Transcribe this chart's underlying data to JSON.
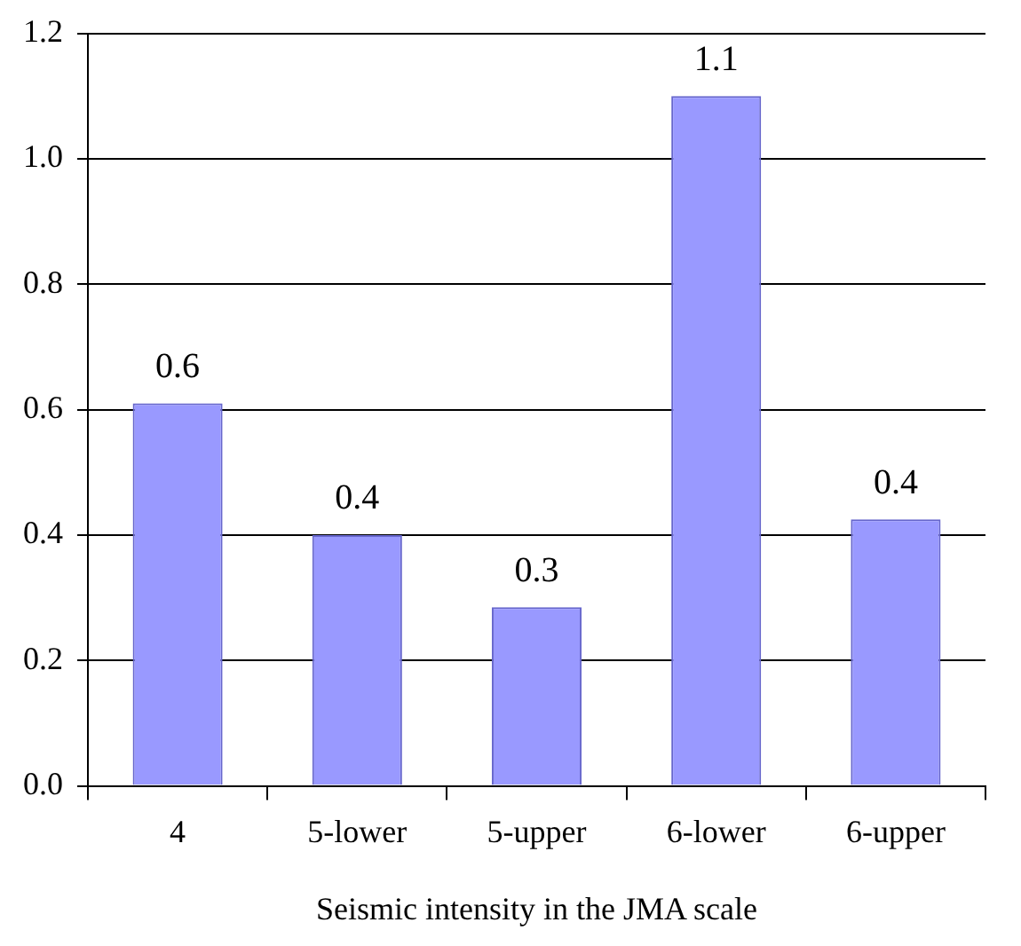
{
  "chart_data": {
    "type": "bar",
    "xlabel": "Seismic intensity in the JMA scale",
    "categories": [
      "4",
      "5-lower",
      "5-upper",
      "6-lower",
      "6-upper"
    ],
    "values": [
      0.61,
      0.4,
      0.285,
      1.1,
      0.425
    ],
    "value_labels": [
      "0.6",
      "0.4",
      "0.3",
      "1.1",
      "0.4"
    ],
    "color": "#9999ff",
    "ylim": [
      0,
      1.2
    ],
    "yticks": [
      {
        "value": 0,
        "label": "0.0"
      },
      0.2,
      0.4,
      0.6,
      0.8,
      {
        "value": 1,
        "label": "1.0"
      },
      1.2
    ],
    "grid": "y",
    "legend": false
  }
}
